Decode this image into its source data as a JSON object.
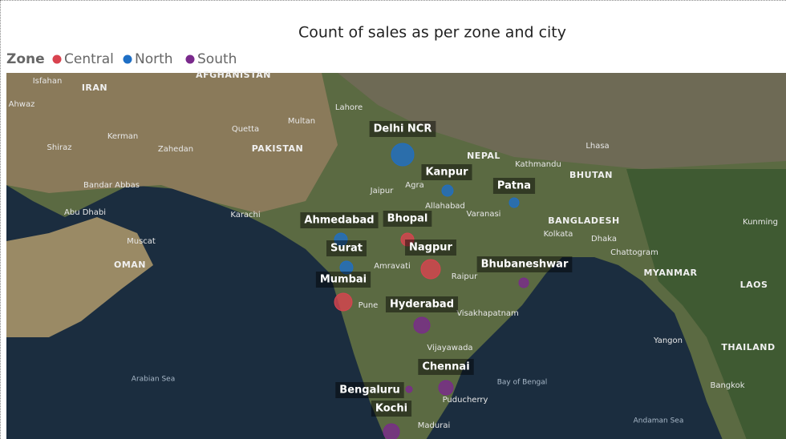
{
  "title": "Count of sales as per zone and city",
  "legend": {
    "title": "Zone",
    "items": [
      {
        "name": "Central",
        "color": "#d9434f"
      },
      {
        "name": "North",
        "color": "#1f6fc5"
      },
      {
        "name": "South",
        "color": "#7a2a8c"
      }
    ]
  },
  "cities": [
    {
      "name": "Delhi NCR",
      "zone": "North"
    },
    {
      "name": "Kanpur",
      "zone": "North"
    },
    {
      "name": "Patna",
      "zone": "North"
    },
    {
      "name": "Ahmedabad",
      "zone": "North"
    },
    {
      "name": "Bhopal",
      "zone": "Central"
    },
    {
      "name": "Surat",
      "zone": "North"
    },
    {
      "name": "Nagpur",
      "zone": "Central"
    },
    {
      "name": "Bhubaneshwar",
      "zone": "South"
    },
    {
      "name": "Mumbai",
      "zone": "Central"
    },
    {
      "name": "Hyderabad",
      "zone": "South"
    },
    {
      "name": "Chennai",
      "zone": "South"
    },
    {
      "name": "Bengaluru",
      "zone": "South"
    },
    {
      "name": "Kochi",
      "zone": "South"
    }
  ],
  "map_labels": [
    "IRAN",
    "AFGHANISTAN",
    "PAKISTAN",
    "OMAN",
    "NEPAL",
    "BHUTAN",
    "BANGLADESH",
    "MYANMAR",
    "LAOS",
    "THAILAND",
    "Arabian Sea",
    "Bay of Bengal",
    "Andaman Sea",
    "Isfahan",
    "Ahwaz",
    "Kerman",
    "Shiraz",
    "Zahedan",
    "Quetta",
    "Karachi",
    "Muscat",
    "Abu Dhabi",
    "Bandar Abbas",
    "Lahore",
    "Multan",
    "Kathmandu",
    "Lhasa",
    "Dhaka",
    "Kolkata",
    "Chattogram",
    "Yangon",
    "Bangkok",
    "Kunming",
    "Pune",
    "Vijayawada",
    "Puducherry",
    "Madurai",
    "Visakhapatnam",
    "Raipur",
    "Jaipur",
    "Agra",
    "Allahabad",
    "Varanasi",
    "Amravati"
  ]
}
